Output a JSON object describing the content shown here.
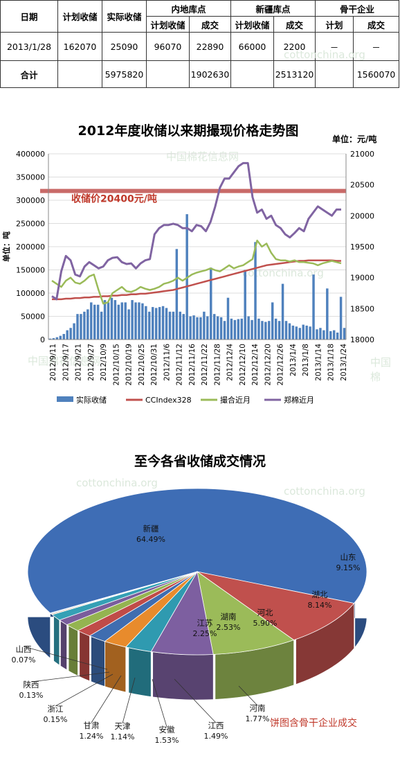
{
  "table": {
    "h_date": "日期",
    "h_plan": "计划收储",
    "h_actual": "实际收储",
    "h_inland": "内地库点",
    "h_xinjiang": "新疆库点",
    "h_backbone": "骨干企业",
    "sub": [
      "计划收储",
      "成交",
      "计划收储",
      "成交",
      "计划",
      "成交"
    ],
    "row1": [
      "2013/1/28",
      "162070",
      "25090",
      "96070",
      "22890",
      "66000",
      "2200",
      "－",
      "－"
    ],
    "row2": [
      "合计",
      "",
      "5975820",
      "",
      "1902630",
      "",
      "2513120",
      "",
      "1560070"
    ]
  },
  "watermarks": [
    "cottonchina.org",
    "中国棉花信息网",
    "中国棉花信息网",
    "cottonchina.org",
    "cottonchina.org",
    "cottonchina.org",
    "中国棉"
  ],
  "chart1": {
    "title": "2012年度收储以来期撮现价格走势图",
    "unit": "单位：元/吨",
    "left_unit": "单位：吨",
    "annotation": "收储价20400元/吨"
  },
  "chart2": {
    "title": "至今各省收储成交情况",
    "note": "饼图含骨干企业成交"
  },
  "colors": {
    "bar": "#4f81bd",
    "ccindex": "#c0504d",
    "zhuanghe": "#9bbb59",
    "zhengmian": "#8064a2",
    "storage_line": "#c0504d"
  },
  "chart_data": [
    {
      "type": "bar+line",
      "title": "2012年度收储以来期撮现价格走势图",
      "y_left_unit": "单位：吨",
      "y_right_unit": "单位：元/吨",
      "ylim_left": [
        0,
        400000
      ],
      "ylim_right": [
        18000,
        21000
      ],
      "y_left_ticks": [
        "0",
        "50000",
        "100000",
        "150000",
        "200000",
        "250000",
        "300000",
        "350000",
        "400000"
      ],
      "y_right_ticks": [
        "18000",
        "18500",
        "19000",
        "19500",
        "20000",
        "20500",
        "21000"
      ],
      "x_ticks": [
        "2012/9/11",
        "2012/9/17",
        "2012/9/21",
        "2012/9/27",
        "2012/10/9",
        "2012/10/15",
        "2012/10/19",
        "2012/10/25",
        "2012/10/31",
        "2012/11/6",
        "2012/11/12",
        "2012/11/16",
        "2012/11/22",
        "2012/11/28",
        "2012/12/4",
        "2012/12/10",
        "2012/12/14",
        "2012/12/20",
        "2012/12/26",
        "2013/1/4",
        "2013/1/8",
        "2013/1/14",
        "2013/1/18",
        "2013/1/24"
      ],
      "reference_line": {
        "label": "收储价20400元/吨",
        "value": 20400
      },
      "series": [
        {
          "name": "实际收储",
          "kind": "bar",
          "axis": "left",
          "values": [
            2000,
            3000,
            5000,
            8000,
            12000,
            20000,
            25000,
            35000,
            55000,
            55000,
            60000,
            65000,
            80000,
            75000,
            75000,
            60000,
            85000,
            80000,
            90000,
            85000,
            75000,
            80000,
            80000,
            65000,
            85000,
            80000,
            80000,
            78000,
            72000,
            60000,
            70000,
            68000,
            70000,
            72000,
            68000,
            60000,
            60000,
            195000,
            60000,
            55000,
            270000,
            50000,
            52000,
            48000,
            48000,
            60000,
            50000,
            155000,
            55000,
            50000,
            48000,
            40000,
            90000,
            45000,
            42000,
            44000,
            45000,
            150000,
            50000,
            42000,
            210000,
            45000,
            40000,
            38000,
            40000,
            80000,
            45000,
            40000,
            120000,
            40000,
            35000,
            30000,
            28000,
            25000,
            32000,
            30000,
            28000,
            140000,
            22000,
            25000,
            20000,
            110000,
            18000,
            20000,
            15000,
            92000,
            25000
          ]
        },
        {
          "name": "CCIndex328",
          "kind": "line",
          "axis": "right",
          "values": [
            18650,
            18650,
            18650,
            18660,
            18660,
            18670,
            18670,
            18680,
            18680,
            18690,
            18690,
            18700,
            18700,
            18710,
            18710,
            18720,
            18720,
            18730,
            18730,
            18740,
            18740,
            18750,
            18760,
            18770,
            18780,
            18790,
            18800,
            18820,
            18840,
            18860,
            18880,
            18900,
            18920,
            18940,
            18960,
            18980,
            19000,
            19020,
            19040,
            19060,
            19080,
            19100,
            19120,
            19140,
            19160,
            19180,
            19200,
            19210,
            19220,
            19230,
            19240,
            19250,
            19260,
            19270,
            19270,
            19280,
            19280,
            19280,
            19280,
            19280,
            19280,
            19270,
            19270
          ]
        },
        {
          "name": "撮合近月",
          "kind": "line",
          "axis": "right",
          "values": [
            18950,
            18900,
            18850,
            18950,
            19000,
            18920,
            18900,
            18950,
            19020,
            19050,
            18800,
            18580,
            18600,
            18750,
            18800,
            18850,
            18780,
            18770,
            18800,
            18850,
            18820,
            18800,
            18820,
            18850,
            18900,
            18920,
            18950,
            19000,
            18950,
            19000,
            19050,
            19080,
            19100,
            19120,
            19150,
            19120,
            19100,
            19150,
            19200,
            19150,
            19180,
            19200,
            19250,
            19300,
            19600,
            19500,
            19550,
            19400,
            19300,
            19280,
            19280,
            19260,
            19280,
            19250,
            19250,
            19240,
            19230,
            19200,
            19230,
            19250,
            19270,
            19250,
            19230
          ]
        },
        {
          "name": "郑棉近月",
          "kind": "line",
          "axis": "right",
          "values": [
            18700,
            18650,
            19100,
            19350,
            19280,
            19050,
            19020,
            19180,
            19250,
            19200,
            19150,
            19180,
            19280,
            19320,
            19330,
            19250,
            19220,
            19230,
            19150,
            19230,
            19280,
            19300,
            19700,
            19800,
            19850,
            19850,
            19870,
            19850,
            19800,
            19800,
            19750,
            19850,
            19830,
            19750,
            19900,
            20150,
            20450,
            20600,
            20600,
            20700,
            20800,
            20850,
            20850,
            20300,
            20050,
            20100,
            19950,
            20000,
            19850,
            19800,
            19700,
            19650,
            19720,
            19800,
            19750,
            19950,
            20050,
            20150,
            20100,
            20050,
            20000,
            20100,
            20100
          ]
        }
      ]
    },
    {
      "type": "pie",
      "title": "至今各省收储成交情况",
      "slices": [
        {
          "label": "新疆",
          "pct": "64.49%",
          "value": 64.49
        },
        {
          "label": "山东",
          "pct": "9.15%",
          "value": 9.15
        },
        {
          "label": "湖北",
          "pct": "8.14%",
          "value": 8.14
        },
        {
          "label": "河北",
          "pct": "5.90%",
          "value": 5.9
        },
        {
          "label": "湖南",
          "pct": "2.53%",
          "value": 2.53
        },
        {
          "label": "江苏",
          "pct": "2.25%",
          "value": 2.25
        },
        {
          "label": "河南",
          "pct": "1.77%",
          "value": 1.77
        },
        {
          "label": "江西",
          "pct": "1.49%",
          "value": 1.49
        },
        {
          "label": "安徽",
          "pct": "1.53%",
          "value": 1.53
        },
        {
          "label": "天津",
          "pct": "1.14%",
          "value": 1.14
        },
        {
          "label": "甘肃",
          "pct": "1.24%",
          "value": 1.24
        },
        {
          "label": "浙江",
          "pct": "0.15%",
          "value": 0.15
        },
        {
          "label": "陕西",
          "pct": "0.13%",
          "value": 0.13
        },
        {
          "label": "山西",
          "pct": "0.07%",
          "value": 0.07
        }
      ]
    }
  ]
}
